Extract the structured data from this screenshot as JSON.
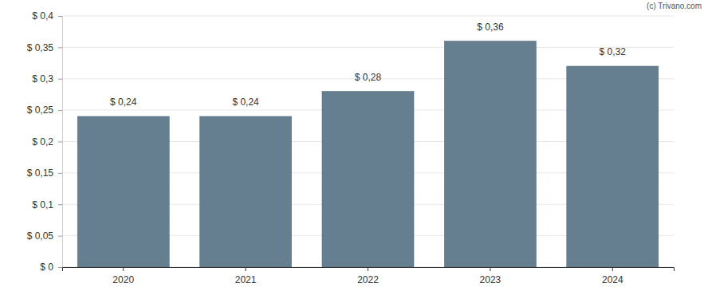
{
  "chart_data": {
    "type": "bar",
    "annotations": [
      "(c) Trivano.com"
    ],
    "categories": [
      "2020",
      "2021",
      "2022",
      "2023",
      "2024"
    ],
    "values": [
      0.24,
      0.24,
      0.28,
      0.36,
      0.32
    ],
    "value_labels": [
      "$ 0,24",
      "$ 0,24",
      "$ 0,28",
      "$ 0,36",
      "$ 0,32"
    ],
    "data_labels": true,
    "color": "#657f91",
    "ylim": [
      0,
      0.4
    ],
    "yticks": [
      {
        "value": 0,
        "label": "$ 0"
      },
      {
        "value": 0.05,
        "label": "$ 0,05"
      },
      {
        "value": 0.1,
        "label": "$ 0,1"
      },
      {
        "value": 0.15,
        "label": "$ 0,15"
      },
      {
        "value": 0.2,
        "label": "$ 0,2"
      },
      {
        "value": 0.25,
        "label": "$ 0,25"
      },
      {
        "value": 0.3,
        "label": "$ 0,3"
      },
      {
        "value": 0.35,
        "label": "$ 0,35"
      },
      {
        "value": 0.4,
        "label": "$ 0,4"
      }
    ],
    "grid": true
  }
}
